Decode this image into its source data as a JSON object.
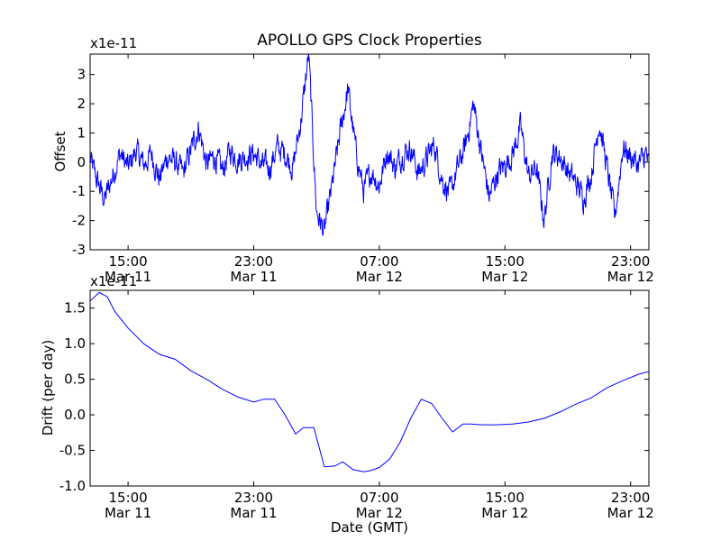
{
  "figure": {
    "title": "APOLLO GPS Clock Properties",
    "xlabel": "Date (GMT)"
  },
  "chart_data": [
    {
      "type": "line",
      "title": "APOLLO GPS Clock Properties",
      "ylabel": "Offset",
      "scale_label": "x1e-11",
      "xlabel": "",
      "xlim": [
        "2012-03-11T12:35",
        "2012-03-13T00:10"
      ],
      "ylim": [
        -3,
        3.7
      ],
      "yticks": [
        "-3",
        "-2",
        "-1",
        "0",
        "1",
        "2",
        "3"
      ],
      "xticks": [
        {
          "time": "2012-03-11T15:00",
          "line1": "15:00",
          "line2": "Mar 11"
        },
        {
          "time": "2012-03-11T23:00",
          "line1": "23:00",
          "line2": "Mar 11"
        },
        {
          "time": "2012-03-12T07:00",
          "line1": "07:00",
          "line2": "Mar 12"
        },
        {
          "time": "2012-03-12T15:00",
          "line1": "15:00",
          "line2": "Mar 12"
        },
        {
          "time": "2012-03-12T23:00",
          "line1": "23:00",
          "line2": "Mar 12"
        }
      ],
      "grid": false,
      "series_color": "#0000ff",
      "series": [
        {
          "x": [
            "2012-03-11T12:35",
            "2012-03-11T13:00",
            "2012-03-11T13:30",
            "2012-03-11T14:00",
            "2012-03-11T14:30",
            "2012-03-11T15:00",
            "2012-03-11T15:30",
            "2012-03-11T16:00",
            "2012-03-11T16:30",
            "2012-03-11T17:00",
            "2012-03-11T17:30",
            "2012-03-11T18:00",
            "2012-03-11T18:30",
            "2012-03-11T19:00",
            "2012-03-11T19:30",
            "2012-03-11T20:00",
            "2012-03-11T20:30",
            "2012-03-11T21:00",
            "2012-03-11T21:30",
            "2012-03-11T22:00",
            "2012-03-11T22:30",
            "2012-03-11T23:00",
            "2012-03-11T23:30",
            "2012-03-12T00:00",
            "2012-03-12T00:30",
            "2012-03-12T01:00",
            "2012-03-12T01:30",
            "2012-03-12T02:00",
            "2012-03-12T02:30",
            "2012-03-12T03:00",
            "2012-03-12T03:30",
            "2012-03-12T04:00",
            "2012-03-12T04:30",
            "2012-03-12T05:00",
            "2012-03-12T05:30",
            "2012-03-12T06:00",
            "2012-03-12T06:30",
            "2012-03-12T07:00",
            "2012-03-12T07:30",
            "2012-03-12T08:00",
            "2012-03-12T08:30",
            "2012-03-12T09:00",
            "2012-03-12T09:30",
            "2012-03-12T10:00",
            "2012-03-12T10:30",
            "2012-03-12T11:00",
            "2012-03-12T11:30",
            "2012-03-12T12:00",
            "2012-03-12T12:30",
            "2012-03-12T13:00",
            "2012-03-12T13:30",
            "2012-03-12T14:00",
            "2012-03-12T14:30",
            "2012-03-12T15:00",
            "2012-03-12T15:30",
            "2012-03-12T16:00",
            "2012-03-12T16:30",
            "2012-03-12T17:00",
            "2012-03-12T17:30",
            "2012-03-12T18:00",
            "2012-03-12T18:30",
            "2012-03-12T19:00",
            "2012-03-12T19:30",
            "2012-03-12T20:00",
            "2012-03-12T20:30",
            "2012-03-12T21:00",
            "2012-03-12T21:30",
            "2012-03-12T22:00",
            "2012-03-12T22:30",
            "2012-03-12T23:00",
            "2012-03-12T23:30",
            "2012-03-13T00:00",
            "2012-03-13T00:10"
          ],
          "y": [
            0.1,
            -0.6,
            -1.3,
            -0.5,
            0.3,
            -0.2,
            0.4,
            -0.1,
            0.3,
            -0.6,
            0.2,
            0.0,
            -0.4,
            0.4,
            1.2,
            -0.1,
            0.2,
            -0.3,
            0.4,
            0.1,
            0.2,
            0.3,
            -0.1,
            -0.2,
            0.5,
            0.3,
            -0.2,
            1.4,
            3.7,
            -1.7,
            -2.4,
            -0.8,
            1.0,
            2.5,
            0.4,
            -1.0,
            -0.3,
            -0.8,
            0.4,
            -0.2,
            0.3,
            0.5,
            -0.4,
            0.1,
            0.6,
            -0.6,
            -1.1,
            -0.2,
            0.6,
            2.0,
            0.3,
            -1.2,
            -0.4,
            -0.1,
            0.3,
            1.2,
            -0.5,
            -0.2,
            -2.0,
            0.3,
            0.2,
            -0.3,
            -0.7,
            -1.2,
            -0.4,
            1.4,
            -0.2,
            -1.9,
            0.5,
            0.2,
            -0.1,
            0.3,
            -0.2
          ],
          "noise_amplitude": 0.35
        }
      ]
    },
    {
      "type": "line",
      "ylabel": "Drift (per day)",
      "scale_label": "x1e-11",
      "xlabel": "Date (GMT)",
      "xlim": [
        "2012-03-11T12:35",
        "2012-03-13T00:10"
      ],
      "ylim": [
        -1.0,
        1.75
      ],
      "yticks": [
        "-1.0",
        "-0.5",
        "0.0",
        "0.5",
        "1.0",
        "1.5"
      ],
      "xticks": [
        {
          "time": "2012-03-11T15:00",
          "line1": "15:00",
          "line2": "Mar 11"
        },
        {
          "time": "2012-03-11T23:00",
          "line1": "23:00",
          "line2": "Mar 11"
        },
        {
          "time": "2012-03-12T07:00",
          "line1": "07:00",
          "line2": "Mar 12"
        },
        {
          "time": "2012-03-12T15:00",
          "line1": "15:00",
          "line2": "Mar 12"
        },
        {
          "time": "2012-03-12T23:00",
          "line1": "23:00",
          "line2": "Mar 12"
        }
      ],
      "grid": false,
      "series_color": "#0000ff",
      "series": [
        {
          "x": [
            "2012-03-11T12:35",
            "2012-03-11T13:10",
            "2012-03-11T13:40",
            "2012-03-11T14:10",
            "2012-03-11T15:00",
            "2012-03-11T16:00",
            "2012-03-11T17:00",
            "2012-03-11T18:00",
            "2012-03-11T19:00",
            "2012-03-11T20:00",
            "2012-03-11T21:00",
            "2012-03-11T22:00",
            "2012-03-11T23:00",
            "2012-03-11T23:40",
            "2012-03-12T00:20",
            "2012-03-12T01:00",
            "2012-03-12T01:40",
            "2012-03-12T02:10",
            "2012-03-12T02:50",
            "2012-03-12T03:30",
            "2012-03-12T04:10",
            "2012-03-12T04:40",
            "2012-03-12T05:20",
            "2012-03-12T06:00",
            "2012-03-12T06:30",
            "2012-03-12T07:00",
            "2012-03-12T07:40",
            "2012-03-12T08:20",
            "2012-03-12T09:00",
            "2012-03-12T09:40",
            "2012-03-12T10:20",
            "2012-03-12T11:00",
            "2012-03-12T11:40",
            "2012-03-12T12:20",
            "2012-03-12T12:50",
            "2012-03-12T13:30",
            "2012-03-12T14:30",
            "2012-03-12T15:30",
            "2012-03-12T16:30",
            "2012-03-12T17:30",
            "2012-03-12T18:30",
            "2012-03-12T19:30",
            "2012-03-12T20:30",
            "2012-03-12T21:30",
            "2012-03-12T22:30",
            "2012-03-12T23:30",
            "2012-03-13T00:10"
          ],
          "y": [
            1.6,
            1.72,
            1.66,
            1.45,
            1.22,
            1.0,
            0.85,
            0.78,
            0.62,
            0.5,
            0.36,
            0.25,
            0.18,
            0.22,
            0.22,
            0.0,
            -0.27,
            -0.18,
            -0.18,
            -0.73,
            -0.72,
            -0.66,
            -0.77,
            -0.8,
            -0.78,
            -0.74,
            -0.62,
            -0.38,
            -0.05,
            0.22,
            0.16,
            -0.05,
            -0.24,
            -0.13,
            -0.13,
            -0.14,
            -0.14,
            -0.13,
            -0.1,
            -0.05,
            0.04,
            0.15,
            0.24,
            0.38,
            0.48,
            0.57,
            0.61
          ]
        }
      ]
    }
  ]
}
